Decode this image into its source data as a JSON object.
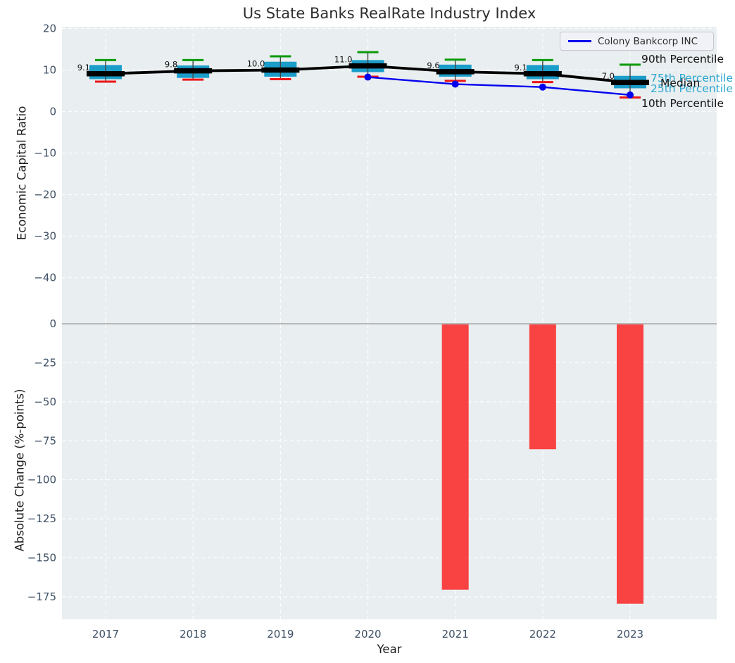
{
  "title": "Us State Banks RealRate Industry Index",
  "legend": {
    "label": "Colony Bankcorp INC"
  },
  "annotations": {
    "p90": "90th Percentile",
    "p75": "75th Percentile",
    "median": "Median",
    "p25": "25th Percentile",
    "p10": "10th Percentile"
  },
  "axis": {
    "x_label": "Year",
    "top_y_label": "Economic Capital Ratio",
    "bottom_y_label": "Absolute Change (%-points)",
    "years": [
      2017,
      2018,
      2019,
      2020,
      2021,
      2022,
      2023
    ],
    "top_yticks": [
      20,
      10,
      0,
      -10,
      -20,
      -30,
      -40
    ],
    "bottom_yticks": [
      0,
      -25,
      -50,
      -75,
      -100,
      -125,
      -150,
      -175
    ]
  },
  "colors": {
    "plot_bg": "#e9eef0",
    "grid": "#ffffff",
    "tick_label": "#3d4f64",
    "box_fill": "#1b9dca",
    "whisker": "#444444",
    "p90_cap": "#0a9a0a",
    "p10_cap": "#ed1515",
    "median_line": "#000000",
    "company_line": "#0000ee",
    "bar_fill": "#f94342",
    "zero_line": "#b0b0b0",
    "value_label": "#111111",
    "percentile_cyan": "#2ca8cf"
  },
  "chart_data": [
    {
      "type": "boxplot",
      "title": "Us State Banks RealRate Industry Index",
      "ylabel": "Economic Capital Ratio",
      "xlabel": "",
      "ylim": [
        -51,
        20.7
      ],
      "grid": true,
      "legend_position": "upper right",
      "categories": [
        2017,
        2018,
        2019,
        2020,
        2021,
        2022,
        2023
      ],
      "boxes": [
        {
          "year": 2017,
          "p10": 7.2,
          "q1": 7.8,
          "median": 9.1,
          "q3": 11.2,
          "p90": 12.4,
          "label": "9.1"
        },
        {
          "year": 2018,
          "p10": 7.7,
          "q1": 8.1,
          "median": 9.8,
          "q3": 11.1,
          "p90": 12.4,
          "label": "9.8"
        },
        {
          "year": 2019,
          "p10": 7.8,
          "q1": 8.4,
          "median": 10.0,
          "q3": 12.0,
          "p90": 13.3,
          "label": "10.0"
        },
        {
          "year": 2020,
          "p10": 8.4,
          "q1": 9.5,
          "median": 11.0,
          "q3": 12.4,
          "p90": 14.3,
          "label": "11.0"
        },
        {
          "year": 2021,
          "p10": 7.4,
          "q1": 8.4,
          "median": 9.6,
          "q3": 11.3,
          "p90": 12.5,
          "label": "9.6"
        },
        {
          "year": 2022,
          "p10": 7.1,
          "q1": 7.8,
          "median": 9.1,
          "q3": 11.2,
          "p90": 12.4,
          "label": "9.1"
        },
        {
          "year": 2023,
          "p10": 3.4,
          "q1": 5.6,
          "median": 7.0,
          "q3": 8.6,
          "p90": 11.3,
          "label": "7.0"
        }
      ],
      "series": [
        {
          "name": "Colony Bankcorp INC",
          "x": [
            2020,
            2021,
            2022,
            2023
          ],
          "y": [
            8.3,
            6.6,
            5.9,
            4.0
          ]
        }
      ]
    },
    {
      "type": "bar",
      "title": "",
      "ylabel": "Absolute Change (%-points)",
      "xlabel": "Year",
      "ylim": [
        -190,
        2
      ],
      "grid": true,
      "categories": [
        2017,
        2018,
        2019,
        2020,
        2021,
        2022,
        2023
      ],
      "values": [
        null,
        null,
        null,
        null,
        -170,
        -80,
        -179
      ]
    }
  ]
}
